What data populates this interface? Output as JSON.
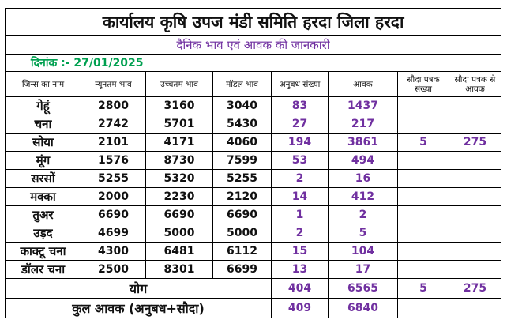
{
  "title": "कार्यालय कृषि उपज मंडी समिति हरदा जिला हरदा",
  "subtitle": "दैनिक भाव एवं आवक की जानकारी",
  "date_label": "दिनांक :-",
  "date_value": "27/01/2025",
  "headers": {
    "name": "जिन्स का नाम",
    "min": "न्यूनतम भाव",
    "max": "उच्चतम भाव",
    "modal": "मॉडल भाव",
    "anubadh_count": "अनुबध संख्या",
    "arrival": "आवक",
    "sauda_count": "सौदा पत्रक संख्या",
    "sauda_arrival": "सौदा पत्रक से आवक"
  },
  "rows": [
    {
      "name": "गेहूं",
      "min": "2800",
      "max": "3160",
      "modal": "3040",
      "anubadh_count": "83",
      "arrival": "1437",
      "sauda_count": "",
      "sauda_arrival": ""
    },
    {
      "name": "चना",
      "min": "2742",
      "max": "5701",
      "modal": "5430",
      "anubadh_count": "27",
      "arrival": "217",
      "sauda_count": "",
      "sauda_arrival": ""
    },
    {
      "name": "सोया",
      "min": "2101",
      "max": "4171",
      "modal": "4060",
      "anubadh_count": "194",
      "arrival": "3861",
      "sauda_count": "5",
      "sauda_arrival": "275"
    },
    {
      "name": "मूंग",
      "min": "1576",
      "max": "8730",
      "modal": "7599",
      "anubadh_count": "53",
      "arrival": "494",
      "sauda_count": "",
      "sauda_arrival": ""
    },
    {
      "name": "सरसों",
      "min": "5255",
      "max": "5320",
      "modal": "5255",
      "anubadh_count": "2",
      "arrival": "16",
      "sauda_count": "",
      "sauda_arrival": ""
    },
    {
      "name": "मक्का",
      "min": "2000",
      "max": "2230",
      "modal": "2120",
      "anubadh_count": "14",
      "arrival": "412",
      "sauda_count": "",
      "sauda_arrival": ""
    },
    {
      "name": "तुअर",
      "min": "6690",
      "max": "6690",
      "modal": "6690",
      "anubadh_count": "1",
      "arrival": "2",
      "sauda_count": "",
      "sauda_arrival": ""
    },
    {
      "name": "उड़द",
      "min": "4699",
      "max": "5000",
      "modal": "5000",
      "anubadh_count": "2",
      "arrival": "5",
      "sauda_count": "",
      "sauda_arrival": ""
    },
    {
      "name": "काक्टू चना",
      "min": "4300",
      "max": "6481",
      "modal": "6112",
      "anubadh_count": "15",
      "arrival": "104",
      "sauda_count": "",
      "sauda_arrival": ""
    },
    {
      "name": "डॉलर चना",
      "min": "2500",
      "max": "8301",
      "modal": "6699",
      "anubadh_count": "13",
      "arrival": "17",
      "sauda_count": "",
      "sauda_arrival": ""
    }
  ],
  "total": {
    "label": "योग",
    "anubadh_count": "404",
    "arrival": "6565",
    "sauda_count": "5",
    "sauda_arrival": "275"
  },
  "grand_total": {
    "label": "कुल आवक (अनुबध+सौदा)",
    "anubadh_count": "409",
    "arrival": "6840"
  },
  "colors": {
    "purple": "#7030a0",
    "green": "#00a050",
    "text": "#111111"
  }
}
